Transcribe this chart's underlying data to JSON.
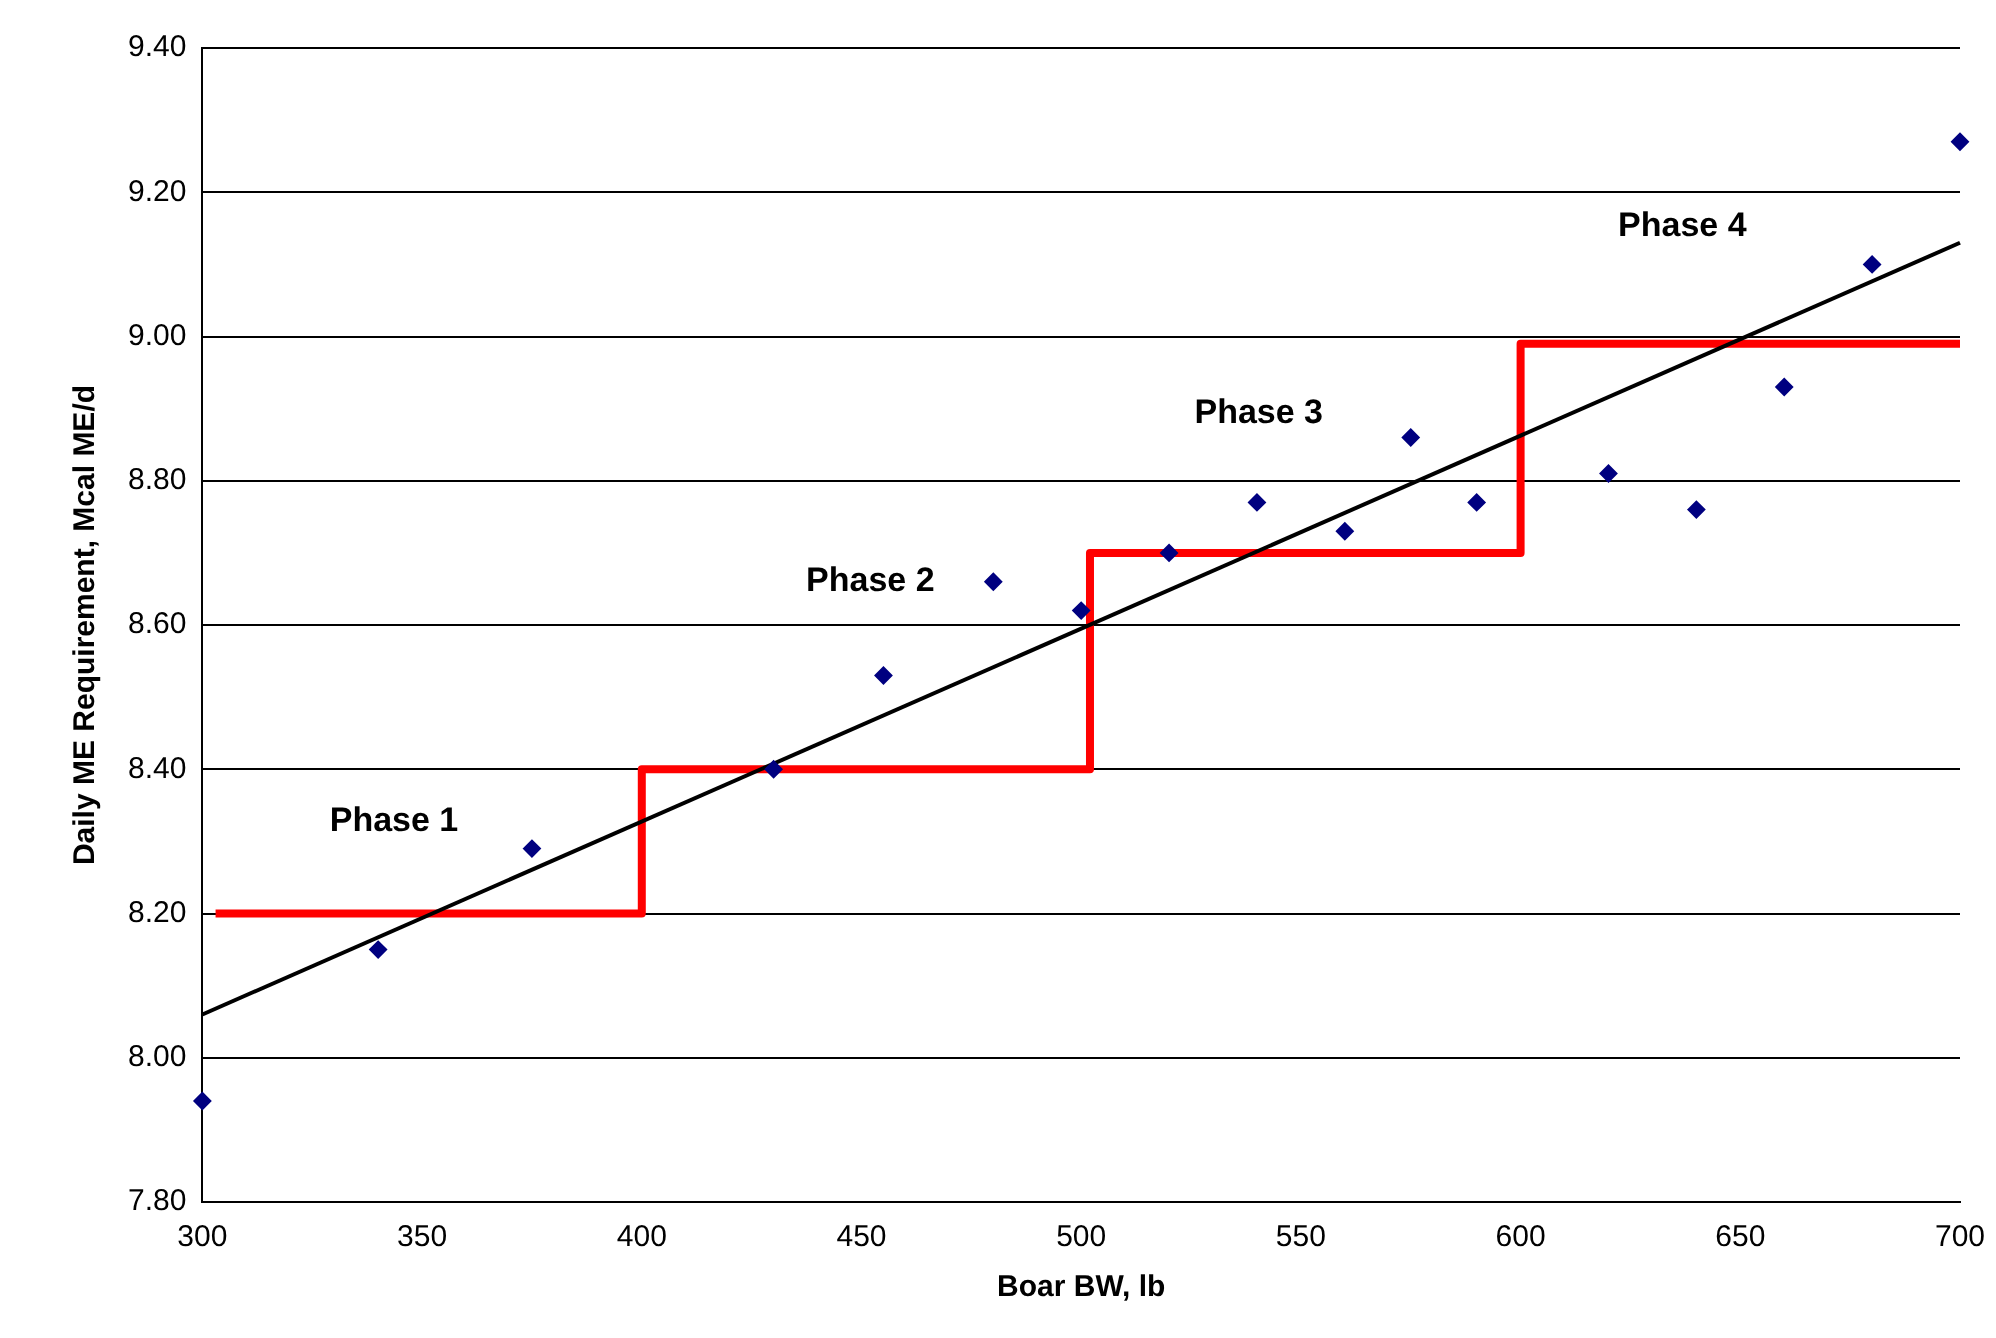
{
  "chart_data": {
    "type": "scatter",
    "xlabel": "Boar BW, lb",
    "ylabel": "Daily ME Requirement, Mcal ME/d",
    "xlim": [
      300,
      700
    ],
    "xticks": [
      300,
      350,
      400,
      450,
      500,
      550,
      600,
      650,
      700
    ],
    "ylim": [
      7.8,
      9.4
    ],
    "yticks": [
      {
        "value": 7.8,
        "label": "7.80"
      },
      {
        "value": 8.0,
        "label": "8.00"
      },
      {
        "value": 8.2,
        "label": "8.20"
      },
      {
        "value": 8.4,
        "label": "8.40"
      },
      {
        "value": 8.6,
        "label": "8.60"
      },
      {
        "value": 8.8,
        "label": "8.80"
      },
      {
        "value": 9.0,
        "label": "9.00"
      },
      {
        "value": 9.2,
        "label": "9.20"
      },
      {
        "value": 9.4,
        "label": "9.40"
      }
    ],
    "grid": "y",
    "legend": false,
    "series": [
      {
        "type": "line",
        "color": "#000000",
        "x": [
          300,
          700
        ],
        "values": [
          8.06,
          9.13
        ],
        "marker": "none"
      },
      {
        "type": "step",
        "color": "#ff0000",
        "x": [
          303,
          400,
          502,
          600,
          700
        ],
        "values": [
          8.2,
          8.4,
          8.7,
          8.99,
          8.99
        ],
        "marker": "none"
      },
      {
        "color": "#000080",
        "marker": "diamond",
        "x": [
          300,
          340,
          375,
          430,
          455,
          480,
          500,
          520,
          540,
          560,
          575,
          590,
          620,
          640,
          660,
          680,
          700
        ],
        "values": [
          7.94,
          8.15,
          8.29,
          8.4,
          8.53,
          8.66,
          8.62,
          8.7,
          8.77,
          8.73,
          8.86,
          8.77,
          8.81,
          8.76,
          8.93,
          9.1,
          9.27
        ]
      }
    ],
    "annotations": [
      "Phase 1",
      "Phase 2",
      "Phase 3",
      "Phase 4"
    ]
  }
}
